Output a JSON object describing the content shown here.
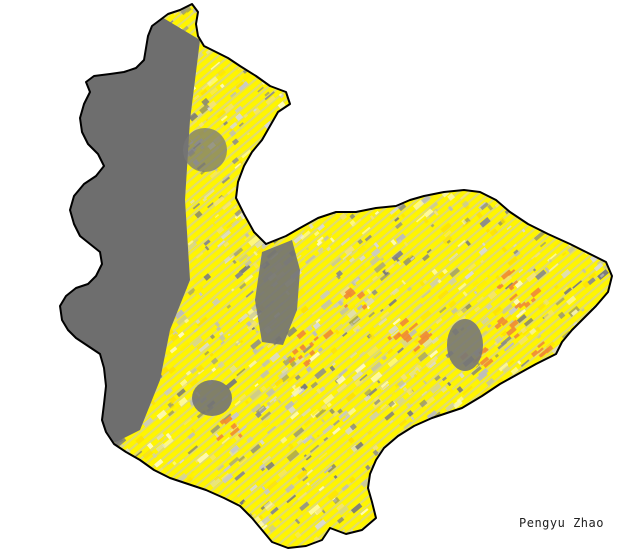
{
  "map": {
    "author": "Pengyu Zhao",
    "colors": {
      "background": "#ffffff",
      "boundary": "#000000",
      "dark_gray": "#6f6f6f",
      "light_gray": "#c4c4c4",
      "pale_yellow": "#fffbb8",
      "yellow": "#fff700",
      "golden": "#f2d94a",
      "orange": "#f0903a"
    }
  }
}
